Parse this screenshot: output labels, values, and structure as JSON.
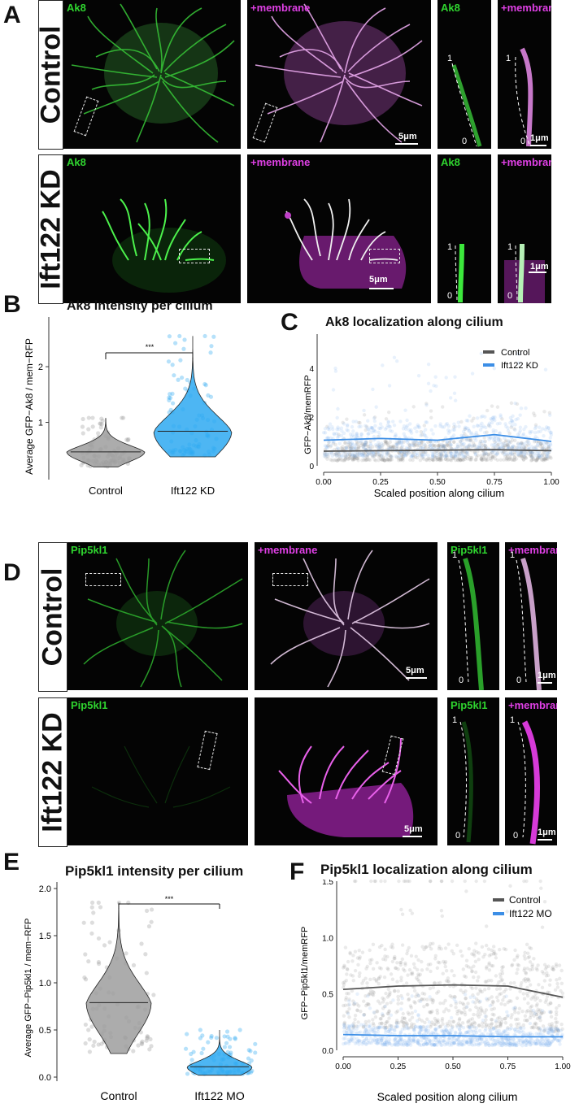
{
  "panel_labels": {
    "a": "A",
    "b": "B",
    "c": "C",
    "d": "D",
    "e": "E",
    "f": "F"
  },
  "panel_a": {
    "row1_condition": "Control",
    "row2_condition": "Ift122 KD",
    "channel_main": "Ak8",
    "channel_merge": "+membrane",
    "scale_5um": "5μm",
    "scale_1um": "1μm",
    "tip_label": "1",
    "base_label": "0"
  },
  "panel_d": {
    "row1_condition": "Control",
    "row2_condition": "Ift122 KD",
    "channel_main": "Pip5kl1",
    "channel_merge": "+membrane",
    "scale_5um": "5μm",
    "scale_1um": "1μm",
    "tip_label": "1",
    "base_label": "0"
  },
  "chart_data": [
    {
      "id": "B",
      "type": "violin",
      "title": "Ak8 intensity per cilium",
      "xlabel": "",
      "ylabel": "Average GFP−Ak8 / mem−RFP",
      "categories": [
        "Control",
        "Ift122 KD"
      ],
      "yticks": [
        "1",
        "2"
      ],
      "ylim": [
        0,
        2.6
      ],
      "medians": [
        0.47,
        0.84
      ],
      "ranges": [
        [
          0.2,
          1.08
        ],
        [
          0.38,
          2.55
        ]
      ],
      "colors": [
        "#9e9e9e",
        "#2ea9f1"
      ],
      "significance": "***"
    },
    {
      "id": "C",
      "type": "scatter",
      "title": "Ak8 localization along cilium",
      "xlabel": "Scaled position along cilium",
      "ylabel": "GFP−Ak8/memRFP",
      "xticks": [
        "0.00",
        "0.25",
        "0.50",
        "0.75",
        "1.00"
      ],
      "yticks": [
        "0",
        "2",
        "4"
      ],
      "xlim": [
        0,
        1
      ],
      "ylim": [
        0,
        5.4
      ],
      "series": [
        {
          "name": "Control",
          "color": "#555555",
          "trend_x": [
            0,
            0.25,
            0.5,
            0.75,
            1
          ],
          "trend_y": [
            0.6,
            0.62,
            0.64,
            0.66,
            0.62
          ]
        },
        {
          "name": "Ift122 KD",
          "color": "#3c8ee6",
          "trend_x": [
            0,
            0.25,
            0.5,
            0.75,
            1
          ],
          "trend_y": [
            1.05,
            1.12,
            1.05,
            1.28,
            1.0
          ]
        }
      ],
      "legend_position": "top-right"
    },
    {
      "id": "E",
      "type": "violin",
      "title": "Pip5kl1 intensity per cilium",
      "xlabel": "",
      "ylabel": "Average GFP−Pip5kl1 / mem−RFP",
      "categories": [
        "Control",
        "Ift122 MO"
      ],
      "yticks": [
        "0.0",
        "0.5",
        "1.0",
        "1.5",
        "2.0"
      ],
      "ylim": [
        0,
        2.0
      ],
      "medians": [
        0.79,
        0.11
      ],
      "ranges": [
        [
          0.25,
          1.85
        ],
        [
          0.02,
          0.5
        ]
      ],
      "colors": [
        "#9e9e9e",
        "#2ea9f1"
      ],
      "significance": "***"
    },
    {
      "id": "F",
      "type": "scatter",
      "title": "Pip5kl1 localization along cilium",
      "xlabel": "Scaled position along cilium",
      "ylabel": "GFP−Pip5kl1/memRFP",
      "xticks": [
        "0.00",
        "0.25",
        "0.50",
        "0.75",
        "1.00"
      ],
      "yticks": [
        "0.0",
        "0.5",
        "1.0",
        "1.5"
      ],
      "xlim": [
        0,
        1
      ],
      "ylim": [
        0,
        1.5
      ],
      "series": [
        {
          "name": "Control",
          "color": "#555555",
          "trend_x": [
            0,
            0.25,
            0.5,
            0.75,
            1
          ],
          "trend_y": [
            0.54,
            0.57,
            0.58,
            0.57,
            0.47
          ]
        },
        {
          "name": "Ift122 MO",
          "color": "#3c8ee6",
          "trend_x": [
            0,
            0.25,
            0.5,
            0.75,
            1
          ],
          "trend_y": [
            0.14,
            0.13,
            0.13,
            0.12,
            0.12
          ]
        }
      ],
      "legend_position": "top-right"
    }
  ]
}
